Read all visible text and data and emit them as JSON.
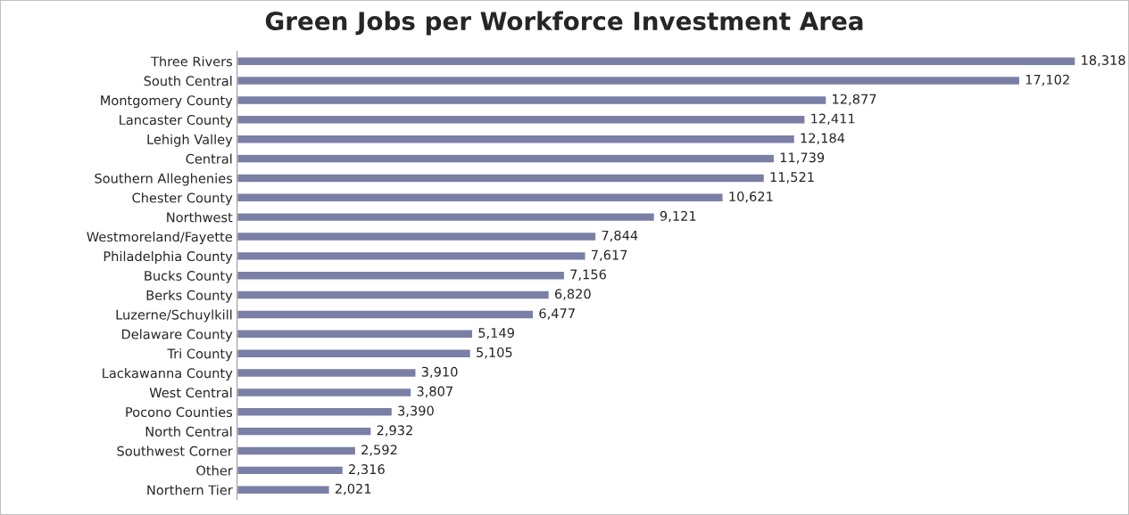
{
  "chart_data": {
    "type": "bar",
    "orientation": "horizontal",
    "title": "Green Jobs per Workforce Investment Area",
    "categories": [
      "Three Rivers",
      "South Central",
      "Montgomery County",
      "Lancaster County",
      "Lehigh Valley",
      "Central",
      "Southern Alleghenies",
      "Chester County",
      "Northwest",
      "Westmoreland/Fayette",
      "Philadelphia County",
      "Bucks County",
      "Berks County",
      "Luzerne/Schuylkill",
      "Delaware County",
      "Tri County",
      "Lackawanna County",
      "West Central",
      "Pocono Counties",
      "North Central",
      "Southwest Corner",
      "Other",
      "Northern Tier"
    ],
    "values": [
      18318,
      17102,
      12877,
      12411,
      12184,
      11739,
      11521,
      10621,
      9121,
      7844,
      7617,
      7156,
      6820,
      6477,
      5149,
      5105,
      3910,
      3807,
      3390,
      2932,
      2592,
      2316,
      2021
    ],
    "value_labels": [
      "18,318",
      "17,102",
      "12,877",
      "12,411",
      "12,184",
      "11,739",
      "11,521",
      "10,621",
      "9,121",
      "7,844",
      "7,617",
      "7,156",
      "6,820",
      "6,477",
      "5,149",
      "5,105",
      "3,910",
      "3,807",
      "3,390",
      "2,932",
      "2,592",
      "2,316",
      "2,021"
    ],
    "color": "#7a7fa6",
    "grid": false,
    "legend": false
  }
}
